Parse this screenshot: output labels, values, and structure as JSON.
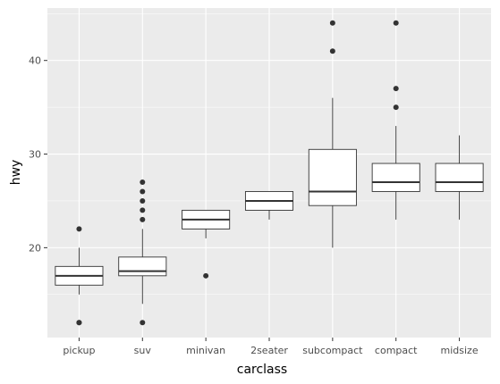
{
  "chart_data": {
    "type": "boxplot",
    "xlabel": "carclass",
    "ylabel": "hwy",
    "ylim": [
      10.4,
      45.6
    ],
    "yticks": [
      20,
      30,
      40
    ],
    "grid": true,
    "colors": {
      "panel": "#ebebeb",
      "grid": "#ffffff",
      "box_fill": "#ffffff",
      "box_line": "#333333",
      "outlier": "#333333",
      "tick_text": "#4d4d4d"
    },
    "categories": [
      "pickup",
      "suv",
      "minivan",
      "2seater",
      "subcompact",
      "compact",
      "midsize"
    ],
    "boxes": [
      {
        "category": "pickup",
        "lower_whisker": 15,
        "q1": 16,
        "median": 17,
        "q3": 18,
        "upper_whisker": 20,
        "outliers": [
          22,
          12,
          12
        ]
      },
      {
        "category": "suv",
        "lower_whisker": 14,
        "q1": 17,
        "median": 17.5,
        "q3": 19,
        "upper_whisker": 22,
        "outliers": [
          27,
          26,
          25,
          24,
          23,
          12
        ]
      },
      {
        "category": "minivan",
        "lower_whisker": 21,
        "q1": 22,
        "median": 23,
        "q3": 24,
        "upper_whisker": 24,
        "outliers": [
          17
        ]
      },
      {
        "category": "2seater",
        "lower_whisker": 23,
        "q1": 24,
        "median": 25,
        "q3": 26,
        "upper_whisker": 26,
        "outliers": []
      },
      {
        "category": "subcompact",
        "lower_whisker": 20,
        "q1": 24.5,
        "median": 26,
        "q3": 30.5,
        "upper_whisker": 36,
        "outliers": [
          44,
          41
        ]
      },
      {
        "category": "compact",
        "lower_whisker": 23,
        "q1": 26,
        "median": 27,
        "q3": 29,
        "upper_whisker": 33,
        "outliers": [
          44,
          37,
          35
        ]
      },
      {
        "category": "midsize",
        "lower_whisker": 23,
        "q1": 26,
        "median": 27,
        "q3": 29,
        "upper_whisker": 32,
        "outliers": []
      }
    ]
  }
}
